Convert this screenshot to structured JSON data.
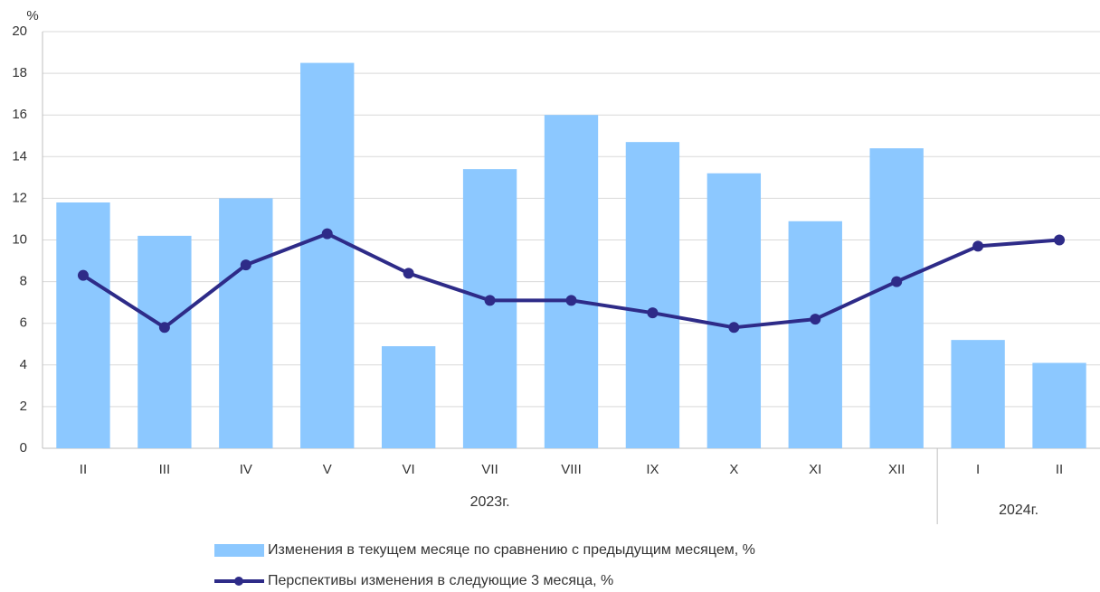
{
  "chart_data": {
    "type": "bar_line",
    "y_axis_label": "%",
    "category_groups": [
      {
        "label": "2023г.",
        "categories": [
          "II",
          "III",
          "IV",
          "V",
          "VI",
          "VII",
          "VIII",
          "IX",
          "X",
          "XI",
          "XII"
        ]
      },
      {
        "label": "2024г.",
        "categories": [
          "I",
          "II"
        ]
      }
    ],
    "series": [
      {
        "name": "Изменения в текущем месяце по сравнению с предыдущим месяцем, %",
        "type": "bar",
        "color": "#8cc8ff",
        "values": [
          11.8,
          10.2,
          12.0,
          18.5,
          4.9,
          13.4,
          16.0,
          14.7,
          13.2,
          10.9,
          14.4,
          5.2,
          4.1
        ]
      },
      {
        "name": "Перспективы изменения в следующие 3 месяца, %",
        "type": "line",
        "color": "#2e2b88",
        "values": [
          8.3,
          5.8,
          8.8,
          10.3,
          8.4,
          7.1,
          7.1,
          6.5,
          5.8,
          6.2,
          8.0,
          9.7,
          10.0
        ]
      }
    ],
    "ylim": [
      0,
      20
    ],
    "yticks": [
      0,
      2,
      4,
      6,
      8,
      10,
      12,
      14,
      16,
      18,
      20
    ],
    "grid": true,
    "legend": "bottom"
  }
}
